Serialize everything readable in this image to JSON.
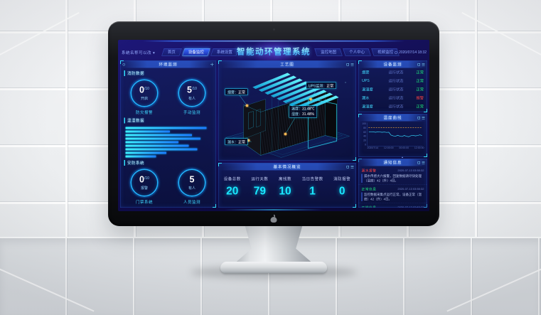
{
  "colors": {
    "accent_cyan": "#00e0ff",
    "accent_blue": "#3a67ff",
    "ok_green": "#1ef07f",
    "alarm_red": "#ff4343",
    "marker_orange": "#ffb03a",
    "screen_bg": "#0c0a38"
  },
  "icons": {
    "header_clock": "clock-icon",
    "panel_fullscreen": "fullscreen-icon",
    "panel_menu": "menu-icon",
    "left_panel_circle": "circle-icon",
    "left_panel_plus": "plus-icon",
    "brand": "apple-logo-icon"
  },
  "header": {
    "system_name": "系统名称可以改 ▾",
    "title": "智能动环管理系统",
    "tabs_left": [
      {
        "label": "首页"
      },
      {
        "label": "设备监控"
      },
      {
        "label": "系统设置"
      }
    ],
    "tabs_right": [
      {
        "label": "监控地图"
      },
      {
        "label": "个人中心"
      },
      {
        "label": "视频监控"
      }
    ],
    "datetime": "2020/07/14 18:32"
  },
  "left_panel": {
    "title": "环境监测",
    "fire": {
      "title": "消防数据",
      "gauges": [
        {
          "value": "0",
          "suffix": "/10",
          "sub": "开启",
          "label": "防灾报警"
        },
        {
          "value": "5",
          "suffix": "/10",
          "sub": "有人",
          "label": "手动监测"
        }
      ]
    },
    "env": {
      "title": "温湿数据"
    },
    "security": {
      "title": "安防系统",
      "gauges": [
        {
          "value": "0",
          "suffix": "/10",
          "sub": "报警",
          "label": "门禁系统"
        },
        {
          "value": "5",
          "suffix": "",
          "sub": "有人",
          "label": "人员监测"
        }
      ]
    }
  },
  "scene": {
    "title": "工艺图",
    "callouts": {
      "smoke": {
        "label": "烟雾：",
        "value": "正常"
      },
      "ups": {
        "label": "UPS监测：",
        "value": "正常"
      },
      "temp": {
        "label": "温度：",
        "value": "31.48℃"
      },
      "hum": {
        "label": "湿度：",
        "value": "31.48%"
      },
      "leak": {
        "label": "漏水：",
        "value": "正常"
      }
    }
  },
  "stats": {
    "title": "基本情况概览",
    "items": [
      {
        "label": "设备总数",
        "value": "20"
      },
      {
        "label": "运行天数",
        "value": "79"
      },
      {
        "label": "离线数",
        "value": "10"
      },
      {
        "label": "当日告警数",
        "value": "1"
      },
      {
        "label": "消防报警",
        "value": "0"
      }
    ]
  },
  "device_panel": {
    "title": "设备监测",
    "rows": [
      {
        "name": "烟雾",
        "metric": "运行状态",
        "status": "正常",
        "state": "ok"
      },
      {
        "name": "UPS",
        "metric": "运行状态",
        "status": "正常",
        "state": "ok"
      },
      {
        "name": "温湿度",
        "metric": "运行状态",
        "status": "正常",
        "state": "ok"
      },
      {
        "name": "漏水",
        "metric": "运行状态",
        "status": "报警",
        "state": "alarm"
      },
      {
        "name": "温湿度",
        "metric": "运行状态",
        "status": "正常",
        "state": "ok"
      }
    ]
  },
  "trend_panel": {
    "title": "温度曲线"
  },
  "notice_panel": {
    "title": "通知信息",
    "items": [
      {
        "tag": "漏水报警",
        "state": "alarm",
        "time": "2020-07-13 03:50:32",
        "body": "漏水传感大六报警，回复数据请尽快处理（温度）42（升）4日。"
      },
      {
        "tag": "正常信息",
        "state": "ok",
        "time": "2020-07-13 03:50:32",
        "body": "监控数据采集点运行正常，设备正常（温度）42（升）4日。"
      },
      {
        "tag": "正常信息",
        "state": "ok",
        "time": "2020-07-13 03:50:32",
        "body": ""
      }
    ]
  },
  "chart_data": [
    {
      "type": "bar",
      "title": "温湿数据",
      "orientation": "horizontal",
      "values_pct": [
        95,
        52,
        78,
        88,
        62,
        74,
        84,
        48,
        36
      ]
    },
    {
      "type": "line",
      "title": "温度曲线",
      "ylim": [
        0,
        100
      ],
      "yticks": [
        "100",
        "80",
        "60",
        "40",
        "20",
        "0"
      ],
      "threshold": 80,
      "x_labels": [
        "2020/7/14",
        "12:00:00",
        "00:00:00",
        "12:00:00"
      ],
      "series": [
        {
          "name": "温度",
          "values": [
            60,
            59,
            60,
            58,
            60,
            59,
            58,
            59,
            57,
            58,
            44,
            40,
            38,
            43,
            39,
            37,
            42,
            38,
            36,
            41,
            43,
            40,
            42,
            45,
            42
          ]
        }
      ],
      "legend_position": "none",
      "grid": false
    }
  ]
}
